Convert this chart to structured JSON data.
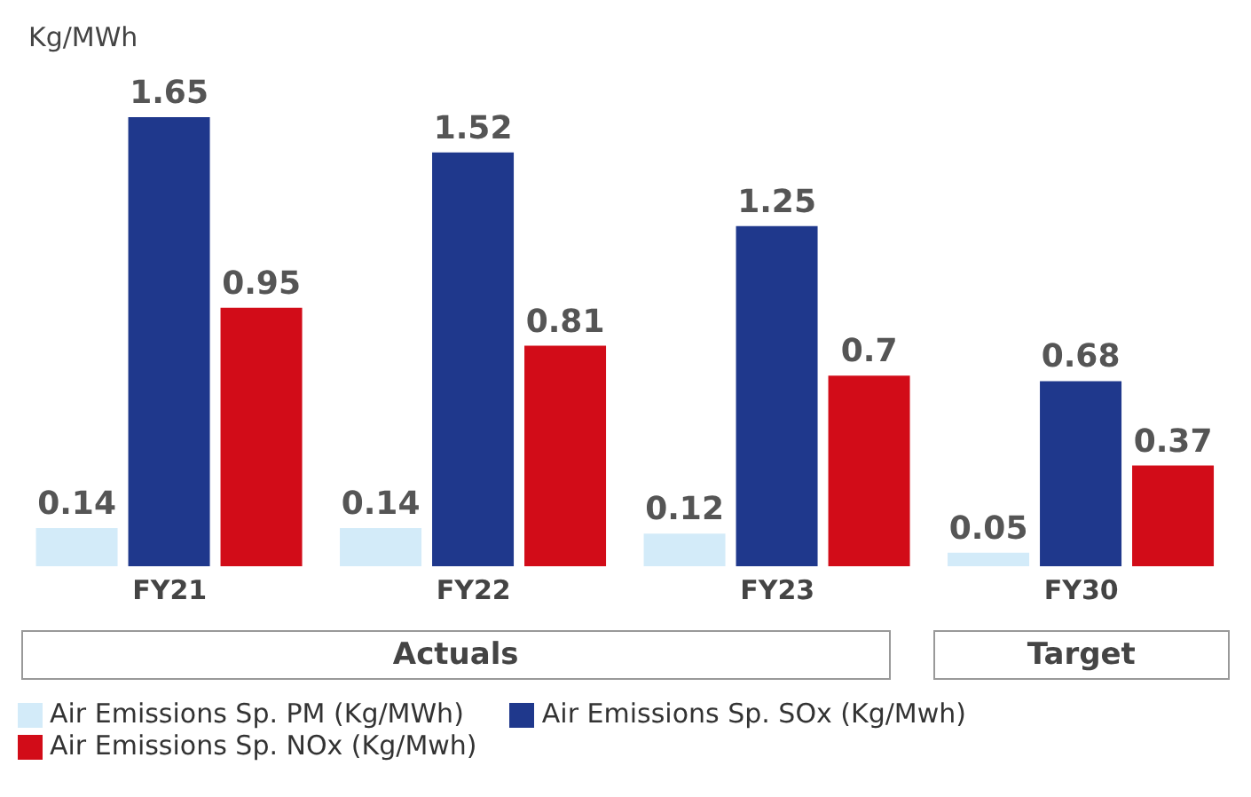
{
  "chart_data": {
    "type": "bar",
    "ylabel": "Kg/MWh",
    "categories": [
      "FY21",
      "FY22",
      "FY23",
      "FY30"
    ],
    "series": [
      {
        "name": "Air Emissions Sp. PM (Kg/MWh)",
        "color": "#d3ebf9",
        "values": [
          0.14,
          0.14,
          0.12,
          0.05
        ]
      },
      {
        "name": "Air Emissions Sp. SOx (Kg/Mwh)",
        "color": "#1f388c",
        "values": [
          1.65,
          1.52,
          1.25,
          0.68
        ]
      },
      {
        "name": "Air Emissions Sp. NOx (Kg/Mwh)",
        "color": "#d20c18",
        "values": [
          0.95,
          0.81,
          0.7,
          0.37
        ]
      }
    ],
    "tick_labels": "x",
    "data_labels": true,
    "legend": "bottom",
    "grid": false,
    "annotations": [
      "Actuals",
      "Target"
    ]
  }
}
